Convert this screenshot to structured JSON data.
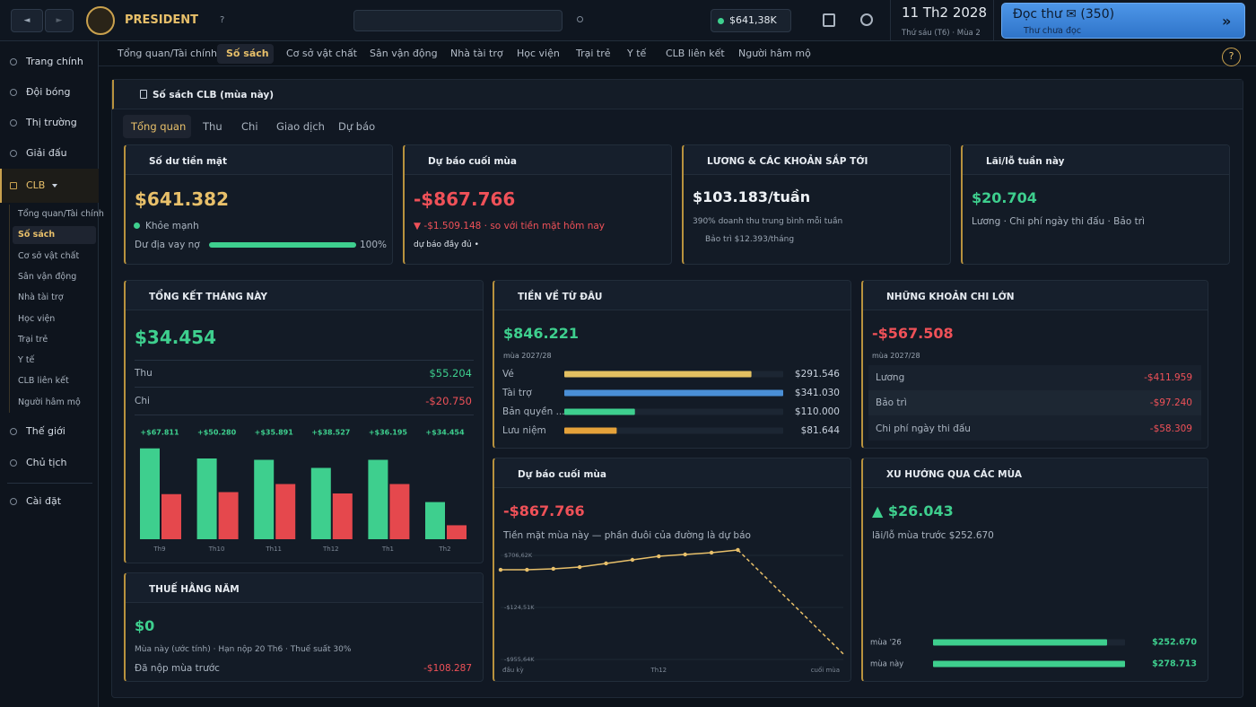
{
  "topbar": {
    "back": "◄",
    "forward": "►",
    "brand": "PRESIDENT",
    "help": "?",
    "balance": "$641,38K",
    "date": "11 Th2 2028",
    "date_sub": "Thứ sáu (T6) · Mùa 2",
    "mail_title": "Đọc thư ✉ (350)",
    "mail_sub": "Thư chưa đọc",
    "mail_arrow": "»"
  },
  "sidebar": {
    "items": [
      "Trang chính",
      "Đội bóng",
      "Thị trường",
      "Giải đấu"
    ],
    "club": "CLB",
    "club_items": [
      "Tổng quan/Tài chính",
      "Số sách",
      "Cơ sở vật chất",
      "Sân vận động",
      "Nhà tài trợ",
      "Học viện",
      "Trại trẻ",
      "Y tế",
      "CLB liên kết",
      "Người hâm mộ"
    ],
    "items2": [
      "Thế giới",
      "Chủ tịch"
    ],
    "settings": "Cài đặt"
  },
  "tabs": {
    "items": [
      "Tổng quan/Tài chính",
      "Số sách",
      "Cơ sở vật chất",
      "Sân vận động",
      "Nhà tài trợ",
      "Học viện",
      "Trại trẻ",
      "Y tế",
      "CLB liên kết",
      "Người hâm mộ"
    ],
    "help": "?"
  },
  "panel": {
    "title": "Số sách CLB (mùa này)",
    "subtabs": [
      "Tổng quan",
      "Thu",
      "Chi",
      "Giao dịch",
      "Dự báo"
    ]
  },
  "cash": {
    "title": "Số dư tiền mặt",
    "value": "$641.382",
    "status": "Khỏe mạnh",
    "debt_title": "Dư địa vay nợ",
    "debt": 100,
    "debt_label": "100%"
  },
  "forecast": {
    "title": "Dự báo cuối mùa",
    "value": "-$867.766",
    "delta": "▼ -$1.509.148 · so với tiền mặt hôm nay",
    "note": "dự báo đầy đủ •"
  },
  "wages": {
    "title": "LƯƠNG & CÁC KHOẢN SẮP TỚI",
    "value": "$103.183/tuần",
    "sub": "390% doanh thu trung bình mỗi tuần",
    "maintenance": "Bảo trì $12.393/tháng"
  },
  "weekly": {
    "title": "Lãi/lỗ tuần này",
    "value": "$20.704",
    "sub": "Lương · Chi phí ngày thi đấu · Bảo trì"
  },
  "month": {
    "title": "TỔNG KẾT THÁNG NÀY",
    "value": "$34.454",
    "rows": [
      [
        "Thu",
        "$55.204"
      ],
      [
        "Chi",
        "-$20.750"
      ]
    ]
  },
  "income": {
    "title": "TIỀN VỀ TỪ ĐÂU",
    "value": "$846.221",
    "sub": "mùa 2027/28"
  },
  "expenses": {
    "title": "NHỮNG KHOẢN CHI LỚN",
    "value": "-$567.508",
    "sub": "mùa 2027/28",
    "rows": [
      [
        "Lương",
        "-$411.959"
      ],
      [
        "Bảo trì",
        "-$97.240"
      ],
      [
        "Chi phí ngày thi đấu",
        "-$58.309"
      ]
    ]
  },
  "tax": {
    "title": "THUẾ HẰNG NĂM",
    "value": "$0",
    "sub": "Mùa này (ước tính) · Hạn nộp 20 Th6 · Thuế suất 30%",
    "row": [
      "Đã nộp mùa trước",
      "-$108.287"
    ]
  },
  "forecast2": {
    "title": "Dự báo cuối mùa",
    "value": "-$867.766",
    "sub": "Tiền mặt mùa này — phần đuôi của đường là dự báo"
  },
  "trend": {
    "title": "XU HƯỚNG QUA CÁC MÙA",
    "value": "▲ $26.043",
    "sub": "lãi/lỗ mùa trước $252.670"
  },
  "chart_data": [
    {
      "type": "bar",
      "categories": [
        "Th9",
        "Th10",
        "Th11",
        "Th12",
        "Th1",
        "Th2"
      ],
      "annotations": [
        "+$67.811",
        "+$50.280",
        "+$35.891",
        "+$38.527",
        "+$36.195",
        "+$34.454"
      ],
      "ylim": [
        0,
        140000
      ],
      "series": [
        {
          "color": "#3ecf8e",
          "values": [
            135000,
            120000,
            118000,
            106000,
            118000,
            55204
          ]
        },
        {
          "color": "#e5484d",
          "values": [
            67000,
            70000,
            82000,
            68000,
            82000,
            20750
          ]
        }
      ]
    },
    {
      "type": "hbar",
      "categories": [
        "Vé",
        "Tài trợ",
        "Bản quyền ...",
        "Lưu niệm"
      ],
      "values": [
        291546,
        341030,
        110000,
        81644
      ],
      "value_labels": [
        "$291.546",
        "$341.030",
        "$110.000",
        "$81.644"
      ],
      "colors": [
        "#e3c061",
        "#4a8fd6",
        "#3ecf8e",
        "#e5a23a"
      ],
      "xlim": [
        0,
        341030
      ]
    },
    {
      "type": "line",
      "x": [
        0,
        1,
        2,
        3,
        4,
        5,
        6,
        7,
        8,
        9,
        13
      ],
      "xlim": [
        0,
        13
      ],
      "xticks": [
        {
          "value": 0,
          "label": "đầu kỳ"
        },
        {
          "value": 6,
          "label": "Th12"
        },
        {
          "value": 13,
          "label": "cuối mùa"
        }
      ],
      "ylim": [
        -955640,
        706620
      ],
      "yticks": [
        {
          "value": 706620,
          "label": "$706,62K"
        },
        {
          "value": -124510,
          "label": "-$124,51K"
        },
        {
          "value": -955640,
          "label": "-$955,64K"
        }
      ],
      "series": [
        {
          "color": "#e8c06a",
          "style": "solid",
          "markers": true,
          "values": [
            477000,
            477000,
            492000,
            520000,
            578000,
            635000,
            692000,
            721000,
            750000,
            793000,
            null
          ]
        },
        {
          "color": "#e8c06a",
          "style": "dashed",
          "markers": false,
          "values": [
            null,
            null,
            null,
            null,
            null,
            null,
            null,
            null,
            null,
            793000,
            -867766
          ]
        }
      ]
    },
    {
      "type": "hbar",
      "categories": [
        "mùa '26",
        "mùa này"
      ],
      "values": [
        252670,
        278713
      ],
      "value_labels": [
        "$252.670",
        "$278.713"
      ],
      "colors": [
        "#3ecf8e",
        "#3ecf8e"
      ],
      "xlim": [
        0,
        278713
      ]
    }
  ]
}
